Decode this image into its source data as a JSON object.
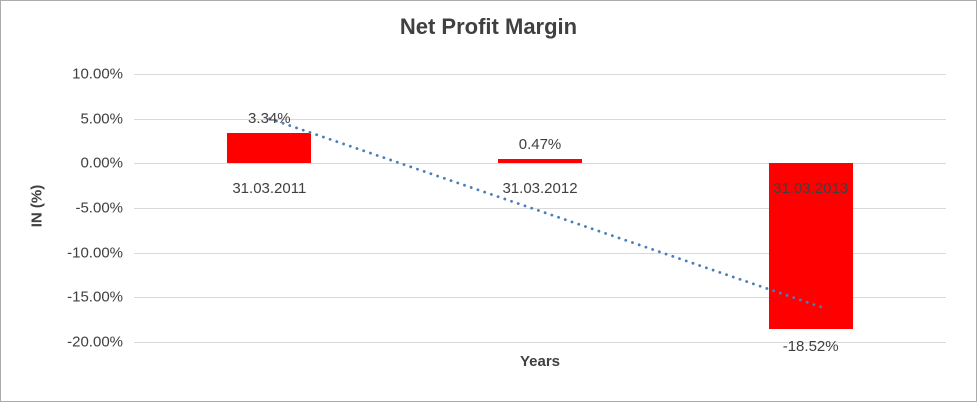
{
  "chart_data": {
    "type": "bar",
    "title": "Net Profit Margin",
    "xlabel": "Years",
    "ylabel": "IN (%)",
    "categories": [
      "31.03.2011",
      "31.03.2012",
      "31.03.2013"
    ],
    "values": [
      3.34,
      0.47,
      -18.52
    ],
    "data_labels": [
      "3.34%",
      "0.47%",
      "-18.52%"
    ],
    "ylim": [
      -20,
      10
    ],
    "yticks": [
      {
        "value": 10,
        "label": "10.00%"
      },
      {
        "value": 5,
        "label": "5.00%"
      },
      {
        "value": 0,
        "label": "0.00%"
      },
      {
        "value": -5,
        "label": "-5.00%"
      },
      {
        "value": -10,
        "label": "-10.00%"
      },
      {
        "value": -15,
        "label": "-15.00%"
      },
      {
        "value": -20,
        "label": "-20.00%"
      }
    ],
    "grid": true,
    "legend": "none",
    "bar_color": "#ff0000",
    "gridline_color": "#d9d9d9",
    "text_color": "#404040",
    "trendline": {
      "style": "dotted",
      "color": "#4a7ebb",
      "x_start_frac": 0.167,
      "value_start": 5.0,
      "x_end_frac": 0.85,
      "value_end": -16.2
    }
  }
}
